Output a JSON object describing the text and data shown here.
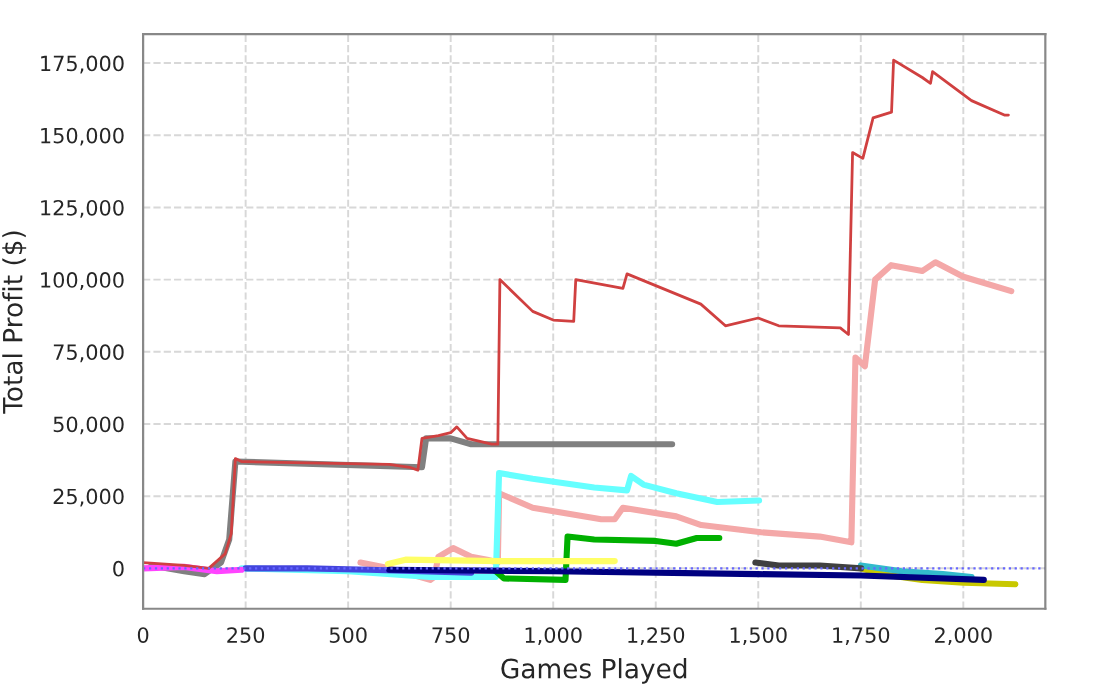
{
  "chart_data": {
    "type": "line",
    "xlabel": "Games Played",
    "ylabel": "Total Profit ($)",
    "xlim": [
      0,
      2200
    ],
    "ylim": [
      -14000,
      185000
    ],
    "xticks": [
      {
        "value": 0,
        "label": "0"
      },
      {
        "value": 250,
        "label": "250"
      },
      {
        "value": 500,
        "label": "500"
      },
      {
        "value": 750,
        "label": "750"
      },
      {
        "value": 1000,
        "label": "1,000"
      },
      {
        "value": 1250,
        "label": "1,250"
      },
      {
        "value": 1500,
        "label": "1,500"
      },
      {
        "value": 1750,
        "label": "1,750"
      },
      {
        "value": 2000,
        "label": "2,000"
      }
    ],
    "yticks": [
      {
        "value": 0,
        "label": "0"
      },
      {
        "value": 25000,
        "label": "25,000"
      },
      {
        "value": 50000,
        "label": "50,000"
      },
      {
        "value": 75000,
        "label": "75,000"
      },
      {
        "value": 100000,
        "label": "100,000"
      },
      {
        "value": 125000,
        "label": "125,000"
      },
      {
        "value": 150000,
        "label": "150,000"
      },
      {
        "value": 175000,
        "label": "175,000"
      }
    ],
    "grid": true,
    "legend": false,
    "marker": "none",
    "line_style": "solid",
    "ref_lines": [
      {
        "axis": "y",
        "value": 0,
        "color": "#6666ff",
        "line_style": "dotted"
      }
    ],
    "series": [
      {
        "color": "#f4a8a8",
        "x": [
          530,
          600,
          700,
          710,
          720,
          756,
          800,
          839,
          865,
          868,
          950,
          1117,
          1150,
          1170,
          1300,
          1361,
          1507,
          1650,
          1727,
          1737,
          1760,
          1785,
          1824,
          1900,
          1932,
          2000,
          2117
        ],
        "values": [
          2000,
          0,
          -4000,
          -3000,
          4000,
          7000,
          4000,
          3000,
          2000,
          26000,
          21000,
          17000,
          17000,
          21000,
          18000,
          15000,
          12500,
          11000,
          9000,
          73000,
          70000,
          100000,
          105000,
          103000,
          106000,
          101000,
          96000
        ]
      },
      {
        "color": "#808080",
        "x": [
          20,
          100,
          150,
          190,
          210,
          225,
          680,
          690,
          750,
          800,
          1290
        ],
        "values": [
          1000,
          -1000,
          -2000,
          2000,
          10000,
          37000,
          35000,
          45000,
          45000,
          43000,
          43000
        ]
      },
      {
        "color": "#66ffff",
        "x": [
          240,
          500,
          700,
          860,
          868,
          950,
          1100,
          1180,
          1190,
          1220,
          1300,
          1400,
          1502
        ],
        "values": [
          0,
          -1000,
          -3000,
          -3000,
          33000,
          31000,
          28000,
          27000,
          32000,
          29000,
          26000,
          23000,
          23500
        ]
      },
      {
        "color": "#00b000",
        "x": [
          860,
          880,
          1030,
          1035,
          1100,
          1250,
          1300,
          1350,
          1405
        ],
        "values": [
          -1000,
          -3500,
          -4000,
          11000,
          10000,
          9500,
          8500,
          10500,
          10500
        ]
      },
      {
        "color": "#ffff66",
        "x": [
          597,
          640,
          870,
          1150
        ],
        "values": [
          1500,
          3000,
          2500,
          2500
        ]
      },
      {
        "color": "#c8c800",
        "x": [
          1750,
          1800,
          1900,
          2000,
          2127
        ],
        "values": [
          0,
          -2000,
          -4000,
          -5000,
          -5500
        ]
      },
      {
        "color": "#33bbcc",
        "x": [
          1750,
          1850,
          1950,
          2020
        ],
        "values": [
          1000,
          -1000,
          -2000,
          -3000
        ]
      },
      {
        "color": "#404040",
        "x": [
          1493,
          1550,
          1650,
          1751
        ],
        "values": [
          2000,
          1000,
          1000,
          0
        ]
      },
      {
        "color": "#4444dd",
        "x": [
          250,
          400,
          550,
          800
        ],
        "values": [
          0,
          0,
          -500,
          -1500
        ]
      },
      {
        "color": "#000080",
        "x": [
          600,
          1000,
          1500,
          1750,
          2050
        ],
        "values": [
          -500,
          -1000,
          -2000,
          -2500,
          -4000
        ]
      },
      {
        "color": "#ff44ff",
        "x": [
          0,
          100,
          180,
          240
        ],
        "values": [
          0,
          500,
          -1000,
          -500
        ]
      },
      {
        "color": "#d04040",
        "x": [
          0,
          100,
          160,
          200,
          215,
          225,
          240,
          400,
          600,
          650,
          670,
          680,
          720,
          750,
          765,
          790,
          850,
          865,
          870,
          950,
          1000,
          1050,
          1055,
          1170,
          1180,
          1360,
          1420,
          1500,
          1550,
          1700,
          1720,
          1730,
          1755,
          1780,
          1825,
          1830,
          1900,
          1920,
          1925,
          2020,
          2100,
          2110
        ],
        "values": [
          2000,
          1000,
          0,
          5000,
          12000,
          38000,
          37000,
          36500,
          36000,
          35000,
          34000,
          45000,
          46000,
          47000,
          49000,
          45000,
          43000,
          43000,
          100000,
          89000,
          86000,
          85500,
          100000,
          97000,
          102000,
          91500,
          84000,
          86700,
          84000,
          83300,
          81000,
          144000,
          142000,
          156000,
          158000,
          176000,
          170000,
          168000,
          172000,
          162000,
          157000,
          157000
        ]
      }
    ]
  }
}
